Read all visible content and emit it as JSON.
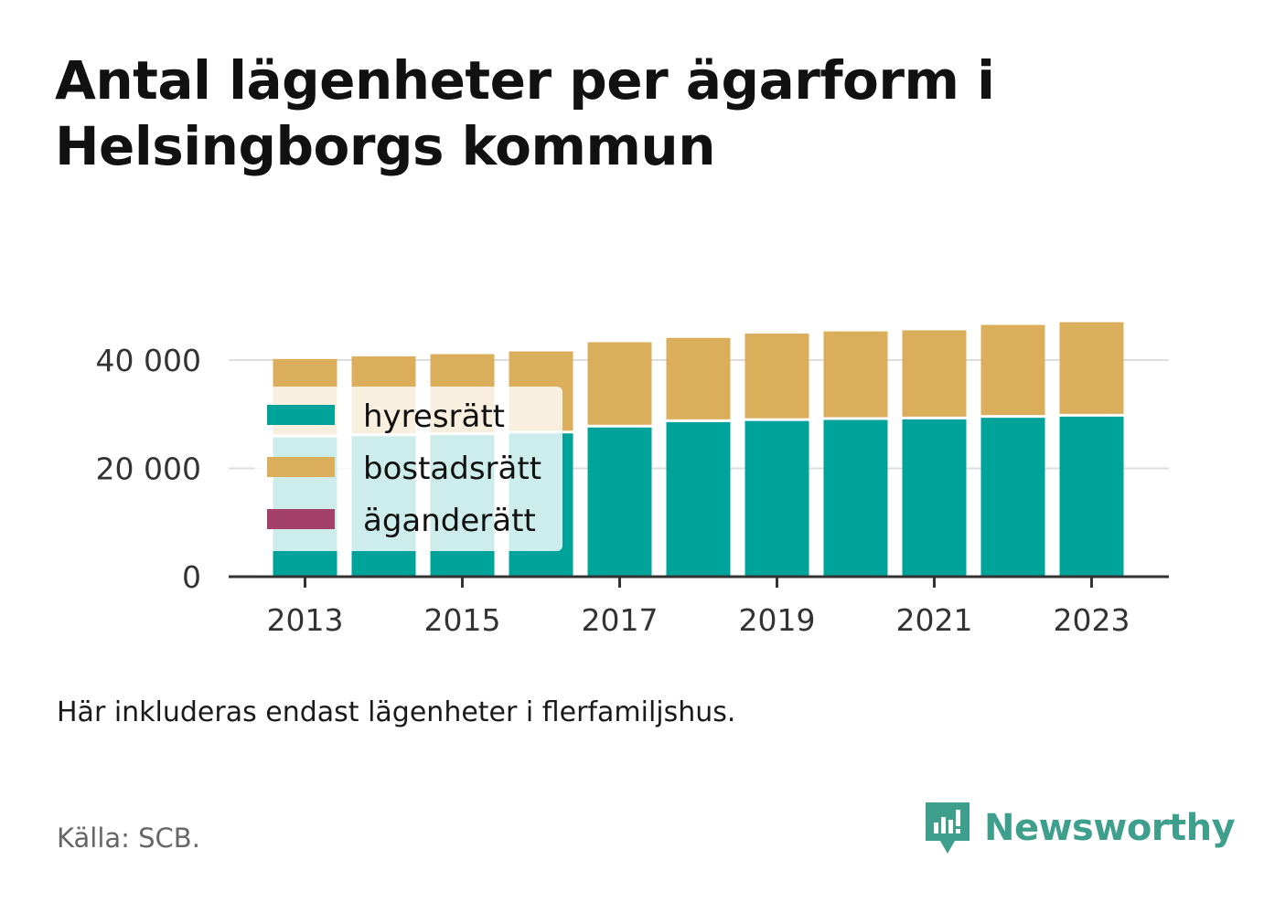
{
  "title": "Antal lägenheter per ägarform i Helsingborgs kommun",
  "note": "Här inkluderas endast lägenheter i flerfamiljshus.",
  "source": "Källa: SCB.",
  "brand": {
    "name": "Newsworthy",
    "icon": "newsworthy-logo-icon",
    "color": "#3e9f8c"
  },
  "chart_data": {
    "type": "bar",
    "stacked": true,
    "categories": [
      "2013",
      "2014",
      "2015",
      "2016",
      "2017",
      "2018",
      "2019",
      "2020",
      "2021",
      "2022",
      "2023"
    ],
    "series": [
      {
        "name": "hyresrätt",
        "color": "#00a39a",
        "values": [
          26000,
          26200,
          26400,
          26700,
          27800,
          28800,
          29000,
          29200,
          29300,
          29600,
          29800
        ]
      },
      {
        "name": "bostadsrätt",
        "color": "#dbae5b",
        "values": [
          14200,
          14500,
          14700,
          14900,
          15500,
          15300,
          15900,
          16100,
          16200,
          16900,
          17200
        ]
      },
      {
        "name": "äganderätt",
        "color": "#a3416a",
        "values": [
          0,
          0,
          0,
          0,
          0,
          0,
          0,
          0,
          0,
          0,
          0
        ]
      }
    ],
    "ylim": [
      0,
      48000
    ],
    "yticks": [
      0,
      20000,
      40000
    ],
    "ytick_labels": [
      "0",
      "20 000",
      "40 000"
    ],
    "xticks": [
      "2013",
      "2015",
      "2017",
      "2019",
      "2021",
      "2023"
    ],
    "xlabel": "",
    "ylabel": "",
    "grid": true,
    "legend": "top-left"
  }
}
